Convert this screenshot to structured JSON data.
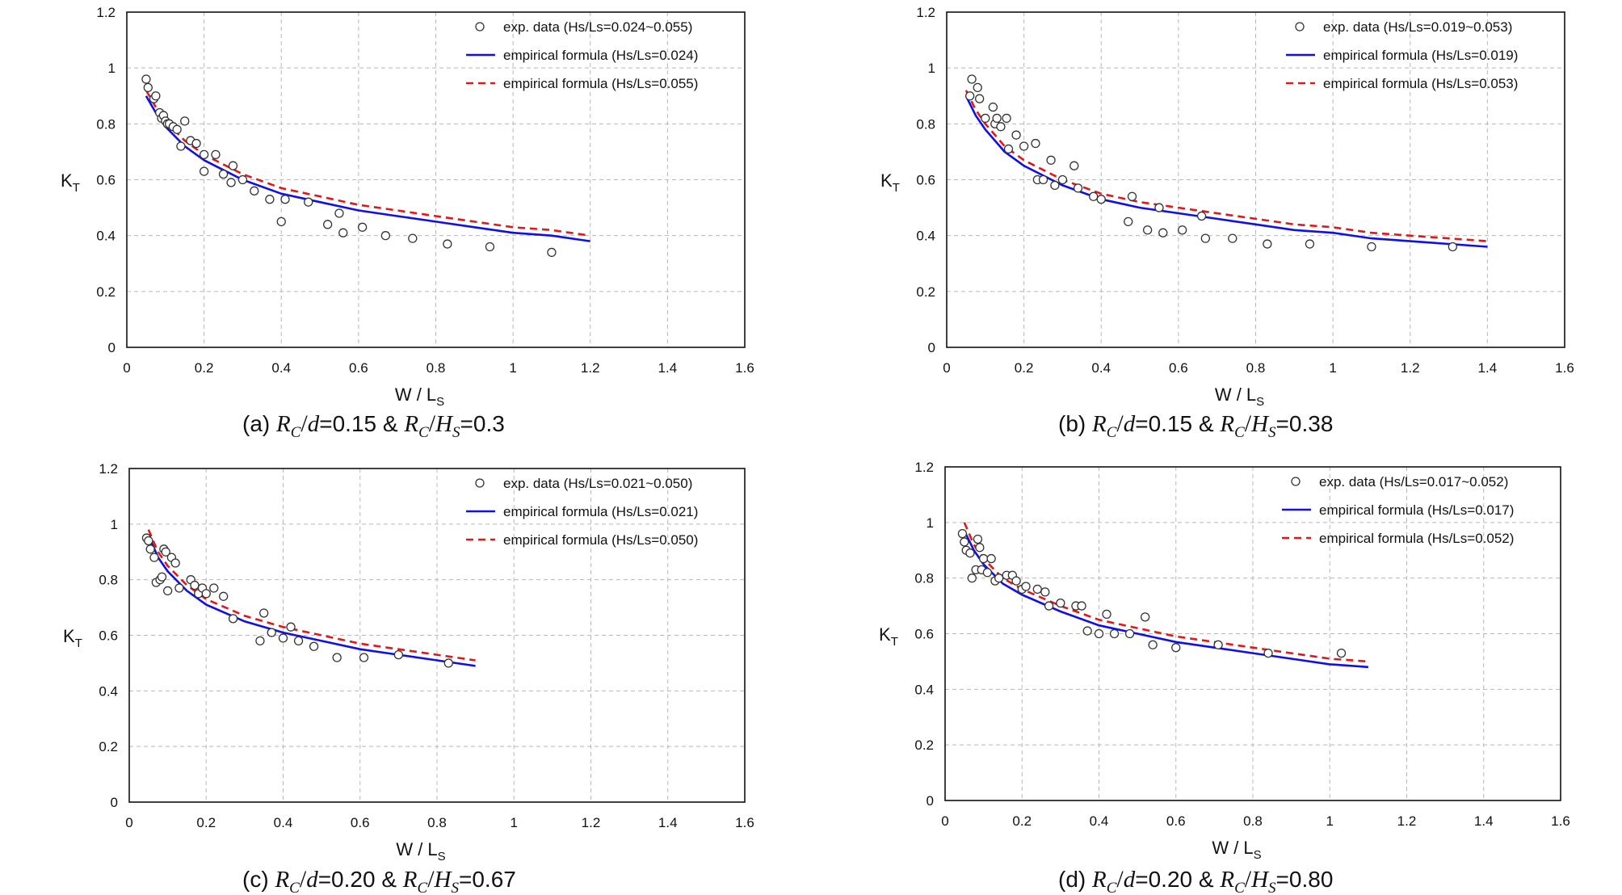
{
  "chart_data": [
    {
      "type": "line",
      "caption": {
        "label": "(a)",
        "rc_d": "=0.15 &",
        "rc_hs": "=0.3"
      },
      "xlabel": "W / L",
      "xlabel_sub": "S",
      "ylabel": "K",
      "ylabel_sub": "T",
      "xlim": [
        0,
        1.6
      ],
      "ylim": [
        0,
        1.2
      ],
      "xticks": [
        "0",
        "0.2",
        "0.4",
        "0.6",
        "0.8",
        "1",
        "1.2",
        "1.4",
        "1.6"
      ],
      "yticks": [
        "0",
        "0.2",
        "0.4",
        "0.6",
        "0.8",
        "1",
        "1.2"
      ],
      "grid": true,
      "legend": "top-right",
      "legend_entries": [
        "exp. data (Hs/Ls=0.024~0.055)",
        "empirical formula (Hs/Ls=0.024)",
        "empirical formula (Hs/Ls=0.055)"
      ],
      "scatter": {
        "x": [
          0.05,
          0.055,
          0.07,
          0.075,
          0.085,
          0.09,
          0.095,
          0.1,
          0.105,
          0.11,
          0.12,
          0.13,
          0.14,
          0.15,
          0.165,
          0.18,
          0.2,
          0.2,
          0.23,
          0.25,
          0.27,
          0.275,
          0.3,
          0.33,
          0.37,
          0.4,
          0.41,
          0.47,
          0.52,
          0.55,
          0.56,
          0.61,
          0.67,
          0.74,
          0.83,
          0.94,
          1.1
        ],
        "y": [
          0.96,
          0.93,
          0.89,
          0.9,
          0.84,
          0.82,
          0.83,
          0.81,
          0.8,
          0.8,
          0.79,
          0.78,
          0.72,
          0.81,
          0.74,
          0.73,
          0.63,
          0.69,
          0.69,
          0.62,
          0.59,
          0.65,
          0.6,
          0.56,
          0.53,
          0.45,
          0.53,
          0.52,
          0.44,
          0.48,
          0.41,
          0.43,
          0.4,
          0.39,
          0.37,
          0.36,
          0.34
        ]
      },
      "series": [
        {
          "x": [
            0.05,
            0.075,
            0.1,
            0.15,
            0.2,
            0.3,
            0.4,
            0.5,
            0.6,
            0.7,
            0.8,
            0.9,
            1.0,
            1.1,
            1.2
          ],
          "y": [
            0.9,
            0.84,
            0.79,
            0.72,
            0.67,
            0.6,
            0.55,
            0.52,
            0.49,
            0.47,
            0.45,
            0.43,
            0.41,
            0.4,
            0.38
          ]
        },
        {
          "x": [
            0.05,
            0.075,
            0.1,
            0.15,
            0.2,
            0.3,
            0.4,
            0.5,
            0.6,
            0.7,
            0.8,
            0.9,
            1.0,
            1.1,
            1.2
          ],
          "y": [
            0.92,
            0.86,
            0.81,
            0.74,
            0.69,
            0.62,
            0.57,
            0.54,
            0.51,
            0.49,
            0.47,
            0.45,
            0.43,
            0.42,
            0.4
          ]
        }
      ]
    },
    {
      "type": "line",
      "caption": {
        "label": "(b)",
        "rc_d": "=0.15 &",
        "rc_hs": "=0.38"
      },
      "xlabel": "W / L",
      "xlabel_sub": "S",
      "ylabel": "K",
      "ylabel_sub": "T",
      "xlim": [
        0,
        1.6
      ],
      "ylim": [
        0,
        1.2
      ],
      "xticks": [
        "0",
        "0.2",
        "0.4",
        "0.6",
        "0.8",
        "1",
        "1.2",
        "1.4",
        "1.6"
      ],
      "yticks": [
        "0",
        "0.2",
        "0.4",
        "0.6",
        "0.8",
        "1",
        "1.2"
      ],
      "grid": true,
      "legend": "top-right",
      "legend_entries": [
        "exp. data (Hs/Ls=0.019~0.053)",
        "empirical formula (Hs/Ls=0.019)",
        "empirical formula (Hs/Ls=0.053)"
      ],
      "scatter": {
        "x": [
          0.06,
          0.065,
          0.08,
          0.085,
          0.1,
          0.12,
          0.125,
          0.13,
          0.14,
          0.155,
          0.16,
          0.18,
          0.2,
          0.23,
          0.235,
          0.25,
          0.27,
          0.28,
          0.3,
          0.33,
          0.34,
          0.38,
          0.4,
          0.47,
          0.48,
          0.52,
          0.55,
          0.56,
          0.61,
          0.66,
          0.67,
          0.74,
          0.83,
          0.94,
          1.1,
          1.31
        ],
        "y": [
          0.9,
          0.96,
          0.93,
          0.89,
          0.82,
          0.86,
          0.8,
          0.82,
          0.79,
          0.82,
          0.71,
          0.76,
          0.72,
          0.73,
          0.6,
          0.6,
          0.67,
          0.58,
          0.6,
          0.65,
          0.57,
          0.54,
          0.53,
          0.45,
          0.54,
          0.42,
          0.5,
          0.41,
          0.42,
          0.47,
          0.39,
          0.39,
          0.37,
          0.37,
          0.36,
          0.36
        ]
      },
      "series": [
        {
          "x": [
            0.05,
            0.075,
            0.1,
            0.15,
            0.2,
            0.3,
            0.4,
            0.5,
            0.6,
            0.7,
            0.8,
            0.9,
            1.0,
            1.1,
            1.2,
            1.3,
            1.4
          ],
          "y": [
            0.9,
            0.83,
            0.78,
            0.7,
            0.65,
            0.58,
            0.53,
            0.5,
            0.48,
            0.46,
            0.44,
            0.42,
            0.41,
            0.39,
            0.38,
            0.37,
            0.36
          ]
        },
        {
          "x": [
            0.05,
            0.075,
            0.1,
            0.15,
            0.2,
            0.3,
            0.4,
            0.5,
            0.6,
            0.7,
            0.8,
            0.9,
            1.0,
            1.1,
            1.2,
            1.3,
            1.4
          ],
          "y": [
            0.92,
            0.85,
            0.8,
            0.72,
            0.67,
            0.6,
            0.55,
            0.52,
            0.5,
            0.48,
            0.46,
            0.44,
            0.43,
            0.41,
            0.4,
            0.39,
            0.38
          ]
        }
      ]
    },
    {
      "type": "line",
      "caption": {
        "label": "(c)",
        "rc_d": "=0.20 &",
        "rc_hs": "=0.67"
      },
      "xlabel": "W / L",
      "xlabel_sub": "S",
      "ylabel": "K",
      "ylabel_sub": "T",
      "xlim": [
        0,
        1.6
      ],
      "ylim": [
        0,
        1.2
      ],
      "xticks": [
        "0",
        "0.2",
        "0.4",
        "0.6",
        "0.8",
        "1",
        "1.2",
        "1.4",
        "1.6"
      ],
      "yticks": [
        "0",
        "0.2",
        "0.4",
        "0.6",
        "0.8",
        "1",
        "1.2"
      ],
      "grid": true,
      "legend": "top-right",
      "legend_entries": [
        "exp. data (Hs/Ls=0.021~0.050)",
        "empirical formula (Hs/Ls=0.021)",
        "empirical formula (Hs/Ls=0.050)"
      ],
      "scatter": {
        "x": [
          0.045,
          0.05,
          0.055,
          0.065,
          0.07,
          0.08,
          0.085,
          0.09,
          0.095,
          0.1,
          0.11,
          0.12,
          0.13,
          0.16,
          0.17,
          0.18,
          0.19,
          0.2,
          0.22,
          0.245,
          0.27,
          0.34,
          0.35,
          0.37,
          0.4,
          0.42,
          0.44,
          0.48,
          0.54,
          0.61,
          0.7,
          0.83
        ],
        "y": [
          0.95,
          0.94,
          0.91,
          0.88,
          0.79,
          0.8,
          0.81,
          0.91,
          0.9,
          0.76,
          0.88,
          0.86,
          0.77,
          0.8,
          0.78,
          0.75,
          0.77,
          0.75,
          0.77,
          0.74,
          0.66,
          0.58,
          0.68,
          0.61,
          0.59,
          0.63,
          0.58,
          0.56,
          0.52,
          0.52,
          0.53,
          0.5
        ]
      },
      "series": [
        {
          "x": [
            0.05,
            0.075,
            0.1,
            0.15,
            0.2,
            0.3,
            0.4,
            0.5,
            0.6,
            0.7,
            0.8,
            0.9
          ],
          "y": [
            0.96,
            0.88,
            0.83,
            0.76,
            0.71,
            0.65,
            0.61,
            0.58,
            0.55,
            0.53,
            0.51,
            0.49
          ]
        },
        {
          "x": [
            0.05,
            0.075,
            0.1,
            0.15,
            0.2,
            0.3,
            0.4,
            0.5,
            0.6,
            0.7,
            0.8,
            0.9
          ],
          "y": [
            0.98,
            0.9,
            0.85,
            0.78,
            0.73,
            0.67,
            0.63,
            0.6,
            0.57,
            0.55,
            0.53,
            0.51
          ]
        }
      ]
    },
    {
      "type": "line",
      "caption": {
        "label": "(d)",
        "rc_d": "=0.20 &",
        "rc_hs": "=0.80"
      },
      "xlabel": "W / L",
      "xlabel_sub": "S",
      "ylabel": "K",
      "ylabel_sub": "T",
      "xlim": [
        0,
        1.6
      ],
      "ylim": [
        0,
        1.2
      ],
      "xticks": [
        "0",
        "0.2",
        "0.4",
        "0.6",
        "0.8",
        "1",
        "1.2",
        "1.4",
        "1.6"
      ],
      "yticks": [
        "0",
        "0.2",
        "0.4",
        "0.6",
        "0.8",
        "1",
        "1.2"
      ],
      "grid": true,
      "legend": "top-right",
      "legend_entries": [
        "exp. data (Hs/Ls=0.017~0.052)",
        "empirical formula (Hs/Ls=0.017)",
        "empirical formula (Hs/Ls=0.052)"
      ],
      "scatter": {
        "x": [
          0.045,
          0.05,
          0.055,
          0.065,
          0.07,
          0.08,
          0.085,
          0.09,
          0.095,
          0.1,
          0.11,
          0.12,
          0.13,
          0.14,
          0.16,
          0.175,
          0.185,
          0.2,
          0.21,
          0.24,
          0.26,
          0.27,
          0.3,
          0.34,
          0.355,
          0.37,
          0.4,
          0.42,
          0.44,
          0.48,
          0.52,
          0.54,
          0.6,
          0.71,
          0.84,
          1.03
        ],
        "y": [
          0.96,
          0.93,
          0.9,
          0.89,
          0.8,
          0.83,
          0.94,
          0.91,
          0.83,
          0.87,
          0.82,
          0.87,
          0.79,
          0.8,
          0.81,
          0.81,
          0.79,
          0.76,
          0.77,
          0.76,
          0.75,
          0.7,
          0.71,
          0.7,
          0.7,
          0.61,
          0.6,
          0.67,
          0.6,
          0.6,
          0.66,
          0.56,
          0.55,
          0.56,
          0.53,
          0.53
        ]
      },
      "series": [
        {
          "x": [
            0.05,
            0.075,
            0.1,
            0.15,
            0.2,
            0.3,
            0.4,
            0.5,
            0.6,
            0.7,
            0.8,
            0.9,
            1.0,
            1.1
          ],
          "y": [
            0.97,
            0.9,
            0.85,
            0.78,
            0.74,
            0.68,
            0.63,
            0.6,
            0.57,
            0.55,
            0.53,
            0.51,
            0.49,
            0.48
          ]
        },
        {
          "x": [
            0.05,
            0.075,
            0.1,
            0.15,
            0.2,
            0.3,
            0.4,
            0.5,
            0.6,
            0.7,
            0.8,
            0.9,
            1.0,
            1.1
          ],
          "y": [
            1.0,
            0.92,
            0.87,
            0.8,
            0.76,
            0.7,
            0.65,
            0.62,
            0.59,
            0.57,
            0.55,
            0.53,
            0.51,
            0.5
          ]
        }
      ]
    }
  ],
  "colors": {
    "series_1": "#1010e6",
    "series_2": "#e01818",
    "grid": "#b8b8b8",
    "marker": "#333333"
  },
  "caption_symbols": {
    "rc": "R",
    "rc_sub": "C",
    "d": "d",
    "hs": "H",
    "hs_sub": "S"
  }
}
